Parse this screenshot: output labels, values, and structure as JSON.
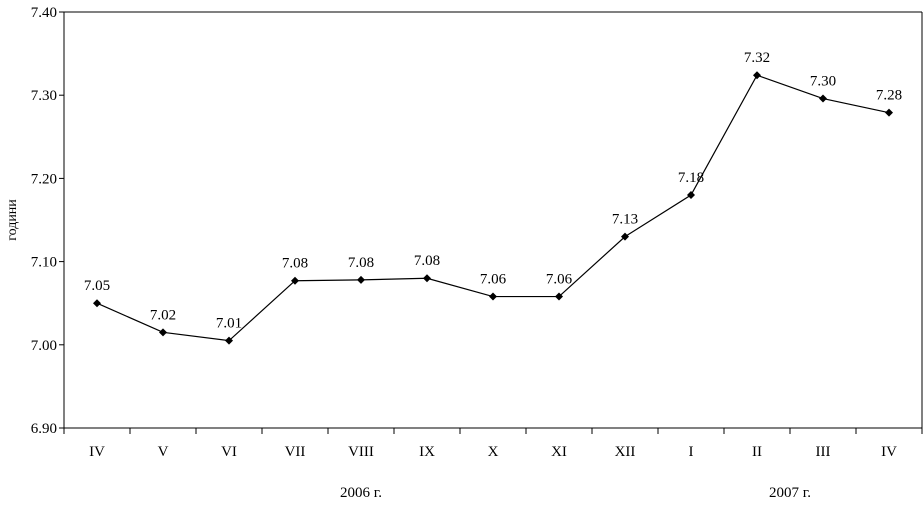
{
  "chart_data": {
    "type": "line",
    "ylabel": "години",
    "ylim": [
      6.9,
      7.4
    ],
    "yticks": [
      "6.90",
      "7.00",
      "7.10",
      "7.20",
      "7.30",
      "7.40"
    ],
    "categories": [
      "IV",
      "V",
      "VI",
      "VII",
      "VIII",
      "IX",
      "X",
      "XI",
      "XII",
      "I",
      "II",
      "III",
      "IV"
    ],
    "values": [
      7.05,
      7.015,
      7.005,
      7.077,
      7.078,
      7.08,
      7.058,
      7.058,
      7.13,
      7.18,
      7.324,
      7.296,
      7.279
    ],
    "data_labels": [
      "7.05",
      "7.02",
      "7.01",
      "7.08",
      "7.08",
      "7.08",
      "7.06",
      "7.06",
      "7.13",
      "7.18",
      "7.32",
      "7.30",
      "7.28"
    ],
    "groups": [
      {
        "label": "2006 г.",
        "categories": [
          "IV",
          "V",
          "VI",
          "VII",
          "VIII",
          "IX",
          "X",
          "XI",
          "XII"
        ]
      },
      {
        "label": "2007 г.",
        "categories": [
          "I",
          "II",
          "III",
          "IV"
        ]
      }
    ],
    "grid": false,
    "legend": "none",
    "color": "#000000"
  }
}
